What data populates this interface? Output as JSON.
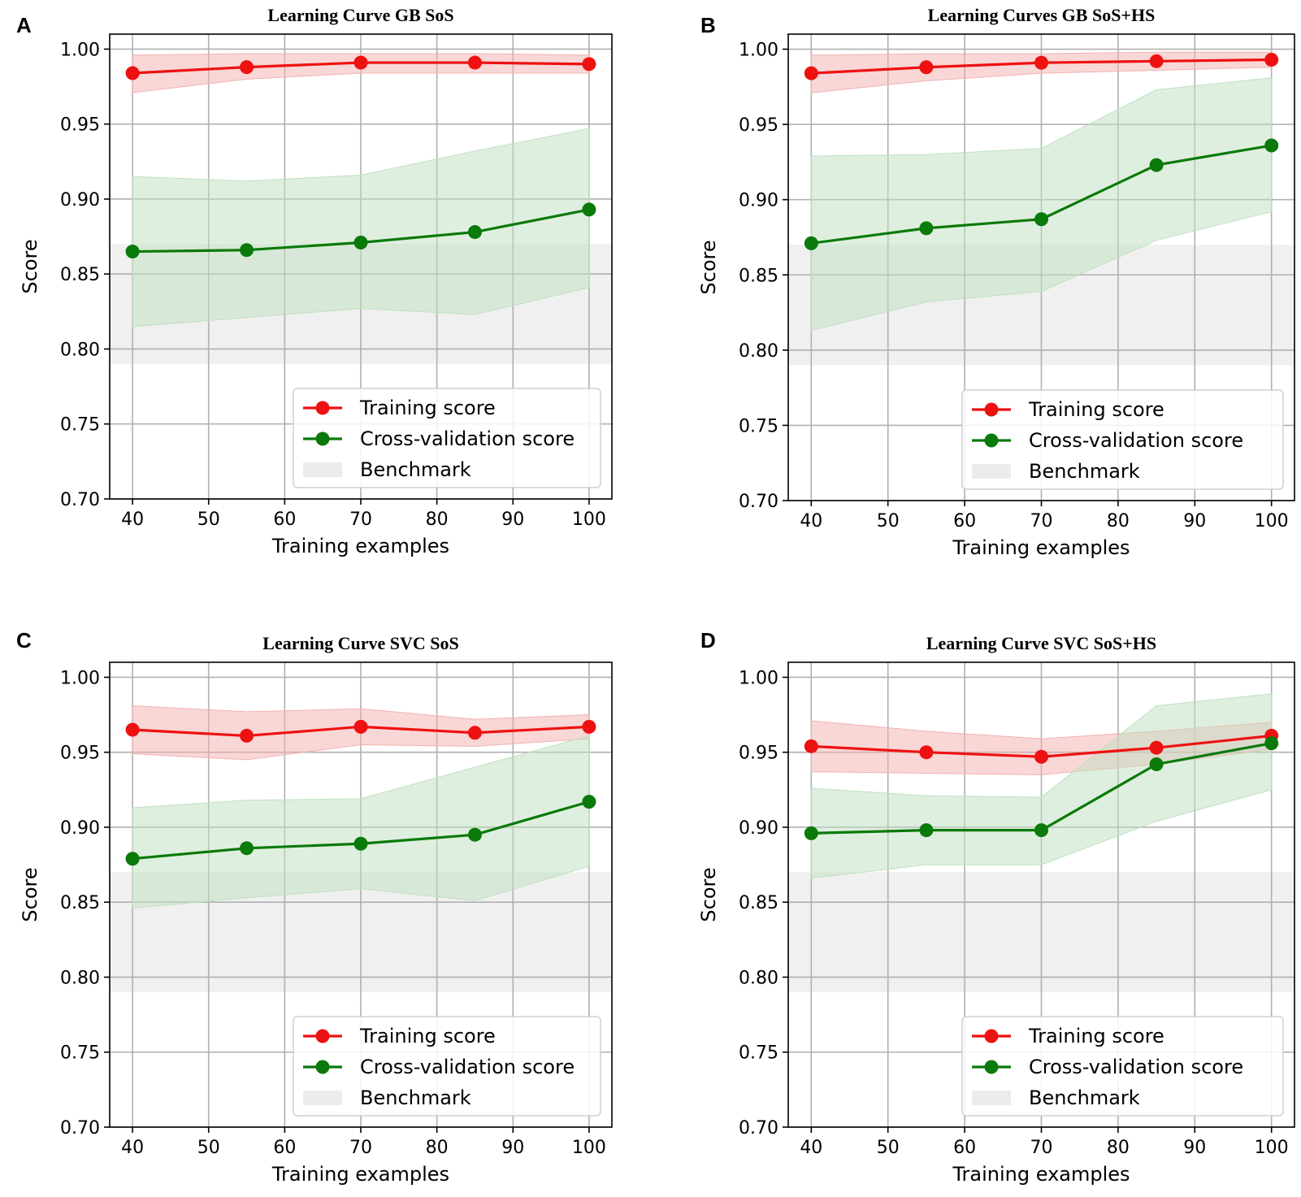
{
  "chart_data": [
    {
      "panel": "A",
      "type": "line",
      "title": "Learning Curve GB SoS",
      "xlabel": "Training examples",
      "ylabel": "Score",
      "xlim": [
        37,
        103
      ],
      "ylim": [
        0.7,
        1.01
      ],
      "xticks": [
        40,
        50,
        60,
        70,
        80,
        90,
        100
      ],
      "yticks": [
        "0.70",
        "0.75",
        "0.80",
        "0.85",
        "0.90",
        "0.95",
        "1.00"
      ],
      "grid": true,
      "legend_position": "lower-right",
      "x": [
        40,
        55,
        70,
        85,
        100
      ],
      "series": [
        {
          "name": "Training score",
          "color": "#ee1111",
          "band_color": "#f4b0b0",
          "values": [
            0.984,
            0.988,
            0.991,
            0.991,
            0.99
          ],
          "lower": [
            0.971,
            0.98,
            0.984,
            0.984,
            0.984
          ],
          "upper": [
            0.996,
            0.997,
            0.997,
            0.997,
            0.996
          ]
        },
        {
          "name": "Cross-validation score",
          "color": "#0a7a0a",
          "band_color": "#bfe0bf",
          "values": [
            0.865,
            0.866,
            0.871,
            0.878,
            0.893
          ],
          "lower": [
            0.815,
            0.821,
            0.827,
            0.823,
            0.841
          ],
          "upper": [
            0.915,
            0.912,
            0.916,
            0.932,
            0.947
          ]
        }
      ],
      "benchmark": {
        "name": "Benchmark",
        "lower": 0.79,
        "upper": 0.87,
        "color": "#f0f0f0"
      }
    },
    {
      "panel": "B",
      "type": "line",
      "title": "Learning Curves GB SoS+HS",
      "xlabel": "Training examples",
      "ylabel": "Score",
      "xlim": [
        37,
        103
      ],
      "ylim": [
        0.7,
        1.01
      ],
      "xticks": [
        40,
        50,
        60,
        70,
        80,
        90,
        100
      ],
      "yticks": [
        "0.70",
        "0.75",
        "0.80",
        "0.85",
        "0.90",
        "0.95",
        "1.00"
      ],
      "grid": true,
      "legend_position": "lower-right",
      "x": [
        40,
        55,
        70,
        85,
        100
      ],
      "series": [
        {
          "name": "Training score",
          "color": "#ee1111",
          "band_color": "#f4b0b0",
          "values": [
            0.984,
            0.988,
            0.991,
            0.992,
            0.993
          ],
          "lower": [
            0.971,
            0.979,
            0.984,
            0.986,
            0.988
          ],
          "upper": [
            0.996,
            0.997,
            0.997,
            0.998,
            0.998
          ]
        },
        {
          "name": "Cross-validation score",
          "color": "#0a7a0a",
          "band_color": "#bfe0bf",
          "values": [
            0.871,
            0.881,
            0.887,
            0.923,
            0.936
          ],
          "lower": [
            0.813,
            0.832,
            0.839,
            0.873,
            0.892
          ],
          "upper": [
            0.929,
            0.93,
            0.934,
            0.973,
            0.981
          ]
        }
      ],
      "benchmark": {
        "name": "Benchmark",
        "lower": 0.79,
        "upper": 0.87,
        "color": "#f0f0f0"
      }
    },
    {
      "panel": "C",
      "type": "line",
      "title": "Learning Curve SVC SoS",
      "xlabel": "Training examples",
      "ylabel": "Score",
      "xlim": [
        37,
        103
      ],
      "ylim": [
        0.7,
        1.01
      ],
      "xticks": [
        40,
        50,
        60,
        70,
        80,
        90,
        100
      ],
      "yticks": [
        "0.70",
        "0.75",
        "0.80",
        "0.85",
        "0.90",
        "0.95",
        "1.00"
      ],
      "grid": true,
      "legend_position": "lower-right",
      "x": [
        40,
        55,
        70,
        85,
        100
      ],
      "series": [
        {
          "name": "Training score",
          "color": "#ee1111",
          "band_color": "#f4b0b0",
          "values": [
            0.965,
            0.961,
            0.967,
            0.963,
            0.967
          ],
          "lower": [
            0.949,
            0.945,
            0.955,
            0.954,
            0.959
          ],
          "upper": [
            0.981,
            0.977,
            0.979,
            0.972,
            0.975
          ]
        },
        {
          "name": "Cross-validation score",
          "color": "#0a7a0a",
          "band_color": "#bfe0bf",
          "values": [
            0.879,
            0.886,
            0.889,
            0.895,
            0.917
          ],
          "lower": [
            0.846,
            0.853,
            0.859,
            0.851,
            0.874
          ],
          "upper": [
            0.913,
            0.918,
            0.919,
            0.94,
            0.961
          ]
        }
      ],
      "benchmark": {
        "name": "Benchmark",
        "lower": 0.79,
        "upper": 0.87,
        "color": "#f0f0f0"
      }
    },
    {
      "panel": "D",
      "type": "line",
      "title": "Learning Curve SVC SoS+HS",
      "xlabel": "Training examples",
      "ylabel": "Score",
      "xlim": [
        37,
        103
      ],
      "ylim": [
        0.7,
        1.01
      ],
      "xticks": [
        40,
        50,
        60,
        70,
        80,
        90,
        100
      ],
      "yticks": [
        "0.70",
        "0.75",
        "0.80",
        "0.85",
        "0.90",
        "0.95",
        "1.00"
      ],
      "grid": true,
      "legend_position": "lower-right",
      "x": [
        40,
        55,
        70,
        85,
        100
      ],
      "series": [
        {
          "name": "Training score",
          "color": "#ee1111",
          "band_color": "#f4b0b0",
          "values": [
            0.954,
            0.95,
            0.947,
            0.953,
            0.961
          ],
          "lower": [
            0.937,
            0.936,
            0.935,
            0.942,
            0.952
          ],
          "upper": [
            0.971,
            0.964,
            0.959,
            0.964,
            0.97
          ]
        },
        {
          "name": "Cross-validation score",
          "color": "#0a7a0a",
          "band_color": "#bfe0bf",
          "values": [
            0.896,
            0.898,
            0.898,
            0.942,
            0.956
          ],
          "lower": [
            0.866,
            0.875,
            0.875,
            0.904,
            0.925
          ],
          "upper": [
            0.926,
            0.921,
            0.92,
            0.981,
            0.989
          ]
        }
      ],
      "benchmark": {
        "name": "Benchmark",
        "lower": 0.79,
        "upper": 0.87,
        "color": "#f0f0f0"
      }
    }
  ]
}
